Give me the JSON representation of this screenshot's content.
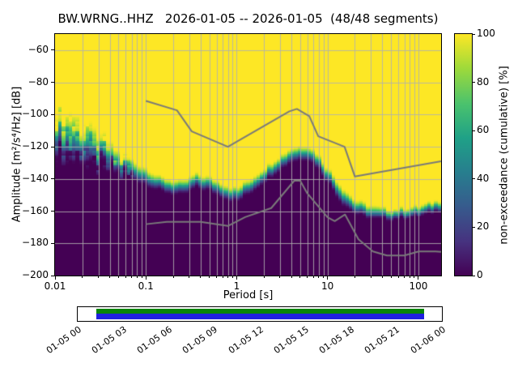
{
  "title": "BW.WRNG..HHZ   2026-01-05 -- 2026-01-05  (48/48 segments)",
  "axes": {
    "xlabel": "Period [s]",
    "ylabel": "Amplitude [m²/s⁴/Hz] [dB]",
    "x_scale": "log",
    "xlim": [
      0.01,
      178
    ],
    "ylim": [
      -200,
      -50
    ],
    "grid": true,
    "x_tick_labels": [
      "0.01",
      "0.1",
      "1",
      "10",
      "100"
    ],
    "x_tick_values": [
      0.01,
      0.1,
      1,
      10,
      100
    ],
    "y_tick_labels": [
      "−60",
      "−80",
      "−100",
      "−120",
      "−140",
      "−160",
      "−180",
      "−200"
    ],
    "y_tick_values": [
      -60,
      -80,
      -100,
      -120,
      -140,
      -160,
      -180,
      -200
    ]
  },
  "colorbar": {
    "label": "non-exceedance (cumulative) [%]",
    "tick_labels": [
      "0",
      "20",
      "40",
      "60",
      "80",
      "100"
    ],
    "tick_values": [
      0,
      20,
      40,
      60,
      80,
      100
    ],
    "colormap": "viridis",
    "stops": [
      {
        "t": 0.0,
        "color": "#440154"
      },
      {
        "t": 0.14,
        "color": "#46327f"
      },
      {
        "t": 0.29,
        "color": "#365c8d"
      },
      {
        "t": 0.43,
        "color": "#277f8e"
      },
      {
        "t": 0.57,
        "color": "#1fa187"
      },
      {
        "t": 0.71,
        "color": "#4ac26d"
      },
      {
        "t": 0.86,
        "color": "#9fda3a"
      },
      {
        "t": 1.0,
        "color": "#fde725"
      }
    ]
  },
  "chart_data": {
    "type": "heatmap",
    "title": "BW.WRNG..HHZ   2026-01-05 -- 2026-01-05  (48/48 segments)",
    "xlabel": "Period [s]",
    "ylabel": "Amplitude [m²/s⁴/Hz] [dB]",
    "value_label": "non-exceedance (cumulative) [%]",
    "x_range_s": [
      0.01,
      178
    ],
    "y_range_db": [
      -200,
      -50
    ],
    "value_range_pct": [
      0,
      100
    ],
    "description": "PPSD cumulative non-exceedance: yellow (100%) above the noise distribution, dark purple (0%) below it; the distribution arrays give the median noise level and transition half-width versus log10(period).",
    "distribution": {
      "log10_period": [
        -2.0,
        -1.75,
        -1.5,
        -1.3,
        -1.0,
        -0.85,
        -0.6,
        -0.45,
        -0.3,
        -0.15,
        0.0,
        0.2,
        0.4,
        0.6,
        0.78,
        0.9,
        1.0,
        1.15,
        1.3,
        1.5,
        1.7,
        2.0,
        2.25
      ],
      "median_db": [
        -112,
        -116,
        -124,
        -131,
        -138,
        -143,
        -146,
        -141,
        -143,
        -147,
        -150,
        -142,
        -133,
        -125,
        -123,
        -129,
        -137,
        -149,
        -157,
        -161,
        -162,
        -160,
        -156
      ],
      "half_width_db": [
        15,
        14,
        11,
        7,
        6,
        5,
        5,
        5,
        5,
        5,
        5,
        5,
        5,
        5,
        5,
        5,
        5,
        6,
        5,
        5,
        4,
        4,
        4
      ]
    },
    "noise_models": {
      "color": "#7a7a7a",
      "high": {
        "period_s": [
          0.1,
          0.22,
          0.32,
          0.8,
          3.8,
          4.6,
          6.3,
          7.9,
          15.4,
          20.0,
          178.0
        ],
        "db": [
          -91.5,
          -97.4,
          -110.5,
          -120.0,
          -98.0,
          -96.5,
          -101.0,
          -113.5,
          -120.0,
          -138.5,
          -129.0
        ]
      },
      "low": {
        "period_s": [
          0.1,
          0.17,
          0.4,
          0.8,
          1.24,
          2.4,
          4.3,
          5.0,
          6.0,
          10.0,
          12.0,
          15.6,
          21.9,
          31.6,
          45.0,
          70.0,
          101.0,
          154.0,
          178.0
        ],
        "db": [
          -168.1,
          -166.7,
          -166.7,
          -169.2,
          -163.7,
          -158.1,
          -141.1,
          -141.1,
          -149.0,
          -163.8,
          -166.2,
          -162.1,
          -177.5,
          -185.0,
          -187.5,
          -187.5,
          -185.0,
          -185.0,
          -185.3
        ]
      }
    }
  },
  "timeline": {
    "tick_labels": [
      "01-05 00",
      "01-05 03",
      "01-05 06",
      "01-05 09",
      "01-05 12",
      "01-05 15",
      "01-05 18",
      "01-05 21",
      "01-06 00"
    ],
    "coverage": {
      "start_frac": 0.05,
      "end_frac": 0.95
    },
    "colors": {
      "top_stripe": "#0a850a",
      "bottom_stripe": "#2020e0"
    }
  }
}
